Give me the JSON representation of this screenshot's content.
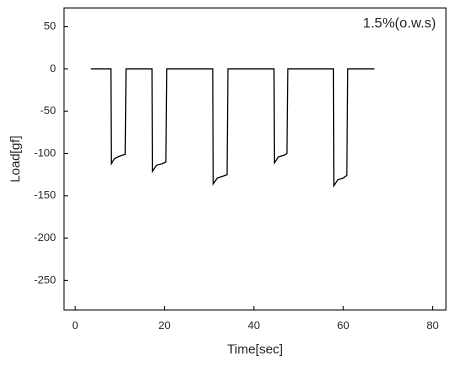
{
  "chart_data": {
    "type": "line",
    "annotation": "1.5%(o.w.s)",
    "x_label": "Time[sec]",
    "y_label": "Load[gf]",
    "xlim": [
      -2.5,
      83
    ],
    "xticks": [
      0,
      20,
      40,
      60,
      80
    ],
    "ylim": [
      -285,
      72
    ],
    "yticks": [
      50,
      0,
      -50,
      -100,
      -150,
      -200,
      -250
    ],
    "series": [
      {
        "name": "Load",
        "color": "#000000",
        "x": [
          3.5,
          8.0,
          8.1,
          8.8,
          10,
          11.2,
          11.4,
          17.2,
          17.3,
          18.2,
          19.5,
          20.3,
          20.5,
          30.8,
          30.9,
          31.8,
          33,
          34,
          34.2,
          44.5,
          44.6,
          45.5,
          46.8,
          47.4,
          47.6,
          57.8,
          57.9,
          58.8,
          60,
          60.8,
          61,
          67
        ],
        "values": [
          0,
          0,
          -112,
          -106,
          -103,
          -101,
          0,
          0,
          -121,
          -114,
          -112,
          -110,
          0,
          0,
          -136,
          -129,
          -127,
          -125,
          0,
          0,
          -111,
          -104,
          -102,
          -100,
          0,
          0,
          -138,
          -131,
          -129,
          -126,
          0,
          0
        ]
      }
    ]
  }
}
